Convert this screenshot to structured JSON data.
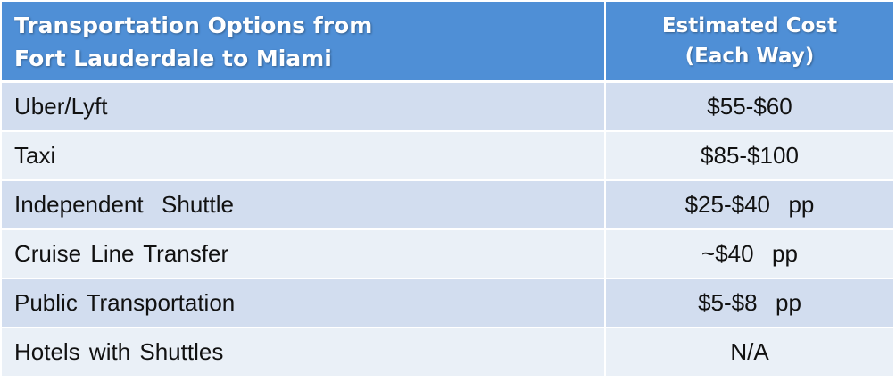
{
  "table": {
    "header": {
      "option_line1": "Transportation Options from",
      "option_line2": "Fort Lauderdale to Miami",
      "cost_line1": "Estimated Cost",
      "cost_line2": "(Each Way)"
    },
    "rows": [
      {
        "option": "Uber/Lyft",
        "cost": "$55-$60"
      },
      {
        "option": "Taxi",
        "cost": "$85-$100"
      },
      {
        "option": "Independent  Shuttle",
        "cost": "$25-$40  pp"
      },
      {
        "option": "Cruise Line Transfer",
        "cost": "~$40  pp"
      },
      {
        "option": "Public Transportation",
        "cost": "$5-$8  pp"
      },
      {
        "option": "Hotels with Shuttles",
        "cost": "N/A"
      }
    ]
  },
  "colors": {
    "header_bg": "#4f8fd6",
    "row_odd_bg": "#d2ddef",
    "row_even_bg": "#eaf0f7"
  }
}
